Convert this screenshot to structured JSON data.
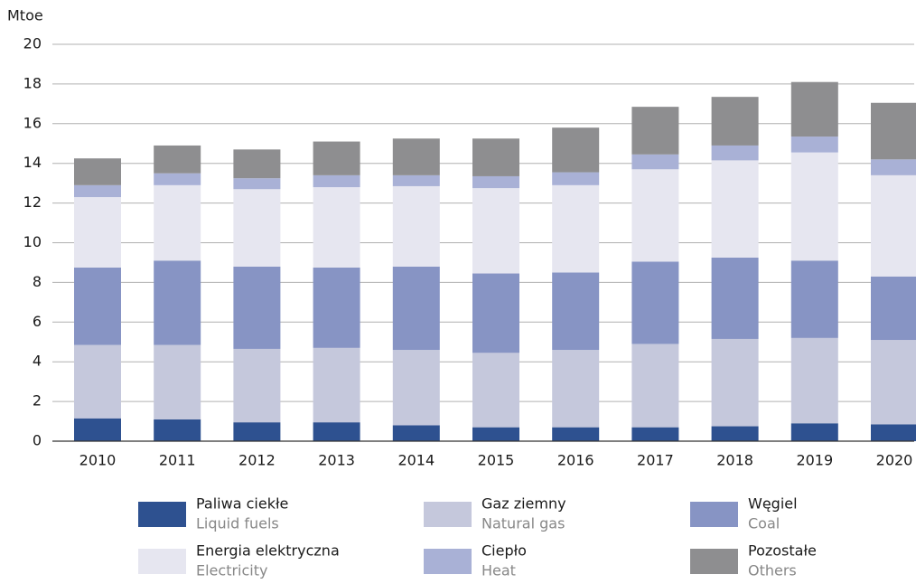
{
  "chart_data": {
    "type": "stacked_bar",
    "y_label": "Mtoe",
    "categories": [
      "2010",
      "2011",
      "2012",
      "2013",
      "2014",
      "2015",
      "2016",
      "2017",
      "2018",
      "2019",
      "2020"
    ],
    "series": [
      {
        "name": "Paliwa ciekłe",
        "name_en": "Liquid fuels",
        "color": "#2e5190",
        "values": [
          1.15,
          1.1,
          0.95,
          0.95,
          0.8,
          0.7,
          0.7,
          0.7,
          0.75,
          0.9,
          0.85
        ]
      },
      {
        "name": "Gaz ziemny",
        "name_en": "Natural gas",
        "color": "#c5c8dc",
        "values": [
          3.7,
          3.75,
          3.7,
          3.75,
          3.8,
          3.75,
          3.9,
          4.2,
          4.4,
          4.3,
          4.25
        ]
      },
      {
        "name": "Węgiel",
        "name_en": "Coal",
        "color": "#8794c4",
        "values": [
          3.9,
          4.25,
          4.15,
          4.05,
          4.2,
          4.0,
          3.9,
          4.15,
          4.1,
          3.9,
          3.2
        ]
      },
      {
        "name": "Energia elektryczna",
        "name_en": "Electricity",
        "color": "#e6e6f0",
        "values": [
          3.55,
          3.8,
          3.9,
          4.05,
          4.05,
          4.3,
          4.4,
          4.65,
          4.9,
          5.45,
          5.1
        ]
      },
      {
        "name": "Ciepło",
        "name_en": "Heat",
        "color": "#a9b1d6",
        "values": [
          0.6,
          0.6,
          0.55,
          0.6,
          0.55,
          0.6,
          0.65,
          0.75,
          0.75,
          0.8,
          0.8
        ]
      },
      {
        "name": "Pozostałe",
        "name_en": "Others",
        "color": "#8e8e90",
        "values": [
          1.35,
          1.4,
          1.45,
          1.7,
          1.85,
          1.9,
          2.25,
          2.4,
          2.45,
          2.75,
          2.85
        ]
      }
    ],
    "ylim": [
      0,
      20
    ],
    "yticks": [
      0,
      2,
      4,
      6,
      8,
      10,
      12,
      14,
      16,
      18,
      20
    ],
    "grid": true
  }
}
